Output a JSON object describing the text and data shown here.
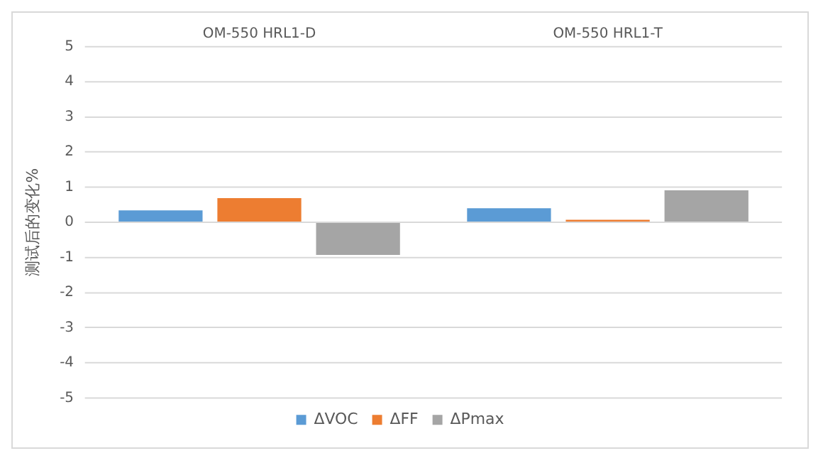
{
  "chart_data": {
    "type": "bar",
    "ylabel": "测试后的变化%",
    "categories": [
      "OM-550 HRL1-D",
      "OM-550 HRL1-T"
    ],
    "series": [
      {
        "name": "ΔVOC",
        "color": "#5b9bd5",
        "values": [
          0.34,
          0.4
        ]
      },
      {
        "name": "ΔFF",
        "color": "#ed7d31",
        "values": [
          0.69,
          0.07
        ]
      },
      {
        "name": "ΔPmax",
        "color": "#a5a5a5",
        "values": [
          -0.93,
          0.91
        ]
      }
    ],
    "ylim": [
      -5,
      5
    ],
    "yticks": [
      -5,
      -4,
      -3,
      -2,
      -1,
      0,
      1,
      2,
      3,
      4,
      5
    ],
    "grid": "y",
    "legend": "bottom"
  }
}
